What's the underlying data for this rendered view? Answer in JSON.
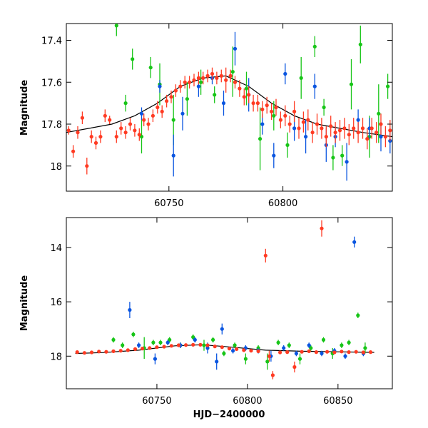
{
  "chart_data": [
    {
      "type": "scatter",
      "xlabel": "",
      "ylabel": "Magnitude",
      "xlim": [
        60705,
        60848
      ],
      "ylim": [
        18.12,
        17.32
      ],
      "y_inverted": true,
      "x_ticks": [
        60750,
        60800
      ],
      "y_ticks": [
        17.4,
        17.6,
        17.8,
        18
      ],
      "y_tick_labels": [
        "17.4",
        "17.6",
        "17.8",
        "18"
      ],
      "grid": false,
      "legend": "none",
      "series": [
        {
          "color": "#ff3a22",
          "x": [
            60706,
            60708,
            60710,
            60712,
            60714,
            60716,
            60718,
            60720,
            60722,
            60724,
            60727,
            60729,
            60731,
            60733,
            60735,
            60737,
            60739,
            60741,
            60743,
            60745,
            60747,
            60749,
            60751,
            60753,
            60755,
            60757,
            60759,
            60761,
            60763,
            60765,
            60767,
            60769,
            60771,
            60773,
            60775,
            60777,
            60779,
            60781,
            60783,
            60785,
            60787,
            60789,
            60791,
            60793,
            60795,
            60797,
            60799,
            60801,
            60803,
            60805,
            60807,
            60809,
            60811,
            60813,
            60815,
            60817,
            60819,
            60821,
            60823,
            60825,
            60827,
            60829,
            60831,
            60833,
            60835,
            60837,
            60839,
            60841,
            60843,
            60845,
            60847
          ],
          "y": [
            17.83,
            17.93,
            17.84,
            17.77,
            18.0,
            17.86,
            17.89,
            17.86,
            17.76,
            17.78,
            17.86,
            17.82,
            17.84,
            17.8,
            17.83,
            17.85,
            17.78,
            17.8,
            17.76,
            17.72,
            17.74,
            17.69,
            17.67,
            17.64,
            17.62,
            17.6,
            17.6,
            17.59,
            17.58,
            17.58,
            17.57,
            17.56,
            17.58,
            17.57,
            17.59,
            17.57,
            17.6,
            17.63,
            17.67,
            17.66,
            17.7,
            17.7,
            17.73,
            17.71,
            17.74,
            17.72,
            17.78,
            17.76,
            17.8,
            17.74,
            17.82,
            17.79,
            17.78,
            17.84,
            17.8,
            17.82,
            17.86,
            17.81,
            17.84,
            17.83,
            17.82,
            17.85,
            17.82,
            17.84,
            17.82,
            17.87,
            17.82,
            17.84,
            17.8,
            17.86,
            17.83
          ],
          "err": [
            0.02,
            0.03,
            0.03,
            0.03,
            0.04,
            0.03,
            0.03,
            0.03,
            0.03,
            0.02,
            0.03,
            0.03,
            0.03,
            0.03,
            0.03,
            0.03,
            0.03,
            0.03,
            0.03,
            0.03,
            0.03,
            0.03,
            0.03,
            0.03,
            0.03,
            0.03,
            0.03,
            0.03,
            0.03,
            0.03,
            0.03,
            0.03,
            0.03,
            0.03,
            0.06,
            0.03,
            0.03,
            0.04,
            0.04,
            0.04,
            0.04,
            0.04,
            0.04,
            0.04,
            0.04,
            0.04,
            0.04,
            0.05,
            0.04,
            0.05,
            0.05,
            0.05,
            0.05,
            0.05,
            0.05,
            0.05,
            0.05,
            0.05,
            0.05,
            0.05,
            0.05,
            0.05,
            0.05,
            0.05,
            0.05,
            0.05,
            0.05,
            0.05,
            0.05,
            0.05,
            0.05
          ]
        },
        {
          "color": "#17c517",
          "x": [
            60727,
            60731,
            60734,
            60738,
            60742,
            60746,
            60752,
            60758,
            60764,
            60770,
            60778,
            60784,
            60790,
            60796,
            60802,
            60808,
            60814,
            60818,
            60822,
            60826,
            60830,
            60834,
            60838,
            60842,
            60846
          ],
          "y": [
            17.33,
            17.7,
            17.49,
            17.86,
            17.53,
            17.61,
            17.78,
            17.68,
            17.6,
            17.66,
            17.55,
            17.63,
            17.87,
            17.76,
            17.9,
            17.58,
            17.43,
            17.72,
            17.96,
            17.95,
            17.61,
            17.42,
            17.86,
            17.75,
            17.62
          ],
          "err": [
            0.05,
            0.04,
            0.05,
            0.08,
            0.05,
            0.1,
            0.12,
            0.08,
            0.06,
            0.04,
            0.12,
            0.08,
            0.15,
            0.07,
            0.06,
            0.1,
            0.05,
            0.04,
            0.06,
            0.05,
            0.12,
            0.09,
            0.1,
            0.14,
            0.06
          ]
        },
        {
          "color": "#0a55e0",
          "x": [
            60738,
            60746,
            60752,
            60756,
            60763,
            60769,
            60774,
            60779,
            60785,
            60791,
            60796,
            60801,
            60805,
            60810,
            60814,
            60819,
            60823,
            60828,
            60833,
            60838,
            60843,
            60847
          ],
          "y": [
            17.75,
            17.62,
            17.95,
            17.75,
            17.62,
            17.58,
            17.7,
            17.44,
            17.66,
            17.8,
            17.95,
            17.56,
            17.82,
            17.86,
            17.62,
            17.9,
            17.86,
            17.98,
            17.78,
            17.82,
            17.86,
            17.88
          ],
          "err": [
            0.03,
            0.03,
            0.1,
            0.08,
            0.05,
            0.03,
            0.06,
            0.08,
            0.08,
            0.05,
            0.06,
            0.05,
            0.06,
            0.08,
            0.06,
            0.08,
            0.05,
            0.09,
            0.05,
            0.05,
            0.07,
            0.06
          ]
        }
      ],
      "model_curve": {
        "color": "#000000",
        "x": [
          60705,
          60715,
          60725,
          60735,
          60745,
          60755,
          60765,
          60775,
          60785,
          60795,
          60805,
          60815,
          60825,
          60835,
          60848
        ],
        "y": [
          17.84,
          17.82,
          17.8,
          17.76,
          17.7,
          17.62,
          17.58,
          17.57,
          17.62,
          17.7,
          17.76,
          17.8,
          17.82,
          17.84,
          17.86
        ]
      }
    },
    {
      "type": "scatter",
      "xlabel": "HJD−2400000",
      "ylabel": "Magnitude",
      "xlim": [
        60700,
        60880
      ],
      "ylim": [
        19.2,
        12.9
      ],
      "y_inverted": true,
      "x_ticks": [
        60750,
        60800,
        60850
      ],
      "y_ticks": [
        14,
        16,
        18
      ],
      "y_tick_labels": [
        "14",
        "16",
        "18"
      ],
      "grid": false,
      "legend": "none",
      "series": [
        {
          "color": "#ff3a22",
          "x": [
            60706,
            60710,
            60714,
            60718,
            60722,
            60726,
            60730,
            60734,
            60738,
            60742,
            60746,
            60750,
            60754,
            60758,
            60762,
            60766,
            60770,
            60774,
            60778,
            60782,
            60786,
            60790,
            60794,
            60798,
            60802,
            60806,
            60810,
            60812,
            60814,
            60818,
            60822,
            60826,
            60830,
            60834,
            60838,
            60841,
            60844,
            60848,
            60852,
            60856,
            60860,
            60864,
            60868
          ],
          "y": [
            17.85,
            17.88,
            17.86,
            17.83,
            17.84,
            17.82,
            17.8,
            17.78,
            17.74,
            17.72,
            17.7,
            17.67,
            17.65,
            17.62,
            17.6,
            17.59,
            17.58,
            17.58,
            17.6,
            17.64,
            17.67,
            17.72,
            17.74,
            17.78,
            17.8,
            17.82,
            14.3,
            18.0,
            18.7,
            17.86,
            17.85,
            18.4,
            17.84,
            17.82,
            17.85,
            13.3,
            17.84,
            17.86,
            17.83,
            17.85,
            17.84,
            17.86,
            17.85
          ],
          "err": [
            0.05,
            0.05,
            0.05,
            0.05,
            0.05,
            0.05,
            0.05,
            0.05,
            0.05,
            0.05,
            0.05,
            0.05,
            0.05,
            0.05,
            0.05,
            0.05,
            0.05,
            0.05,
            0.05,
            0.05,
            0.05,
            0.05,
            0.05,
            0.05,
            0.05,
            0.05,
            0.25,
            0.2,
            0.15,
            0.05,
            0.05,
            0.2,
            0.05,
            0.05,
            0.05,
            0.3,
            0.05,
            0.05,
            0.05,
            0.05,
            0.05,
            0.05,
            0.05
          ]
        },
        {
          "color": "#17c517",
          "x": [
            60726,
            60731,
            60737,
            60743,
            60748,
            60752,
            60757,
            60763,
            60770,
            60776,
            60781,
            60787,
            60793,
            60799,
            60806,
            60811,
            60817,
            60823,
            60829,
            60835,
            60842,
            60847,
            60852,
            60856,
            60861,
            60865
          ],
          "y": [
            17.4,
            17.6,
            17.2,
            17.7,
            17.5,
            17.5,
            17.4,
            17.6,
            17.3,
            17.6,
            17.4,
            17.9,
            17.6,
            18.1,
            17.7,
            18.2,
            17.5,
            17.6,
            18.1,
            17.7,
            17.4,
            17.9,
            17.6,
            17.5,
            16.5,
            17.7
          ],
          "err": [
            0.1,
            0.1,
            0.1,
            0.4,
            0.1,
            0.1,
            0.1,
            0.1,
            0.1,
            0.2,
            0.1,
            0.1,
            0.1,
            0.2,
            0.1,
            0.3,
            0.1,
            0.1,
            0.2,
            0.1,
            0.1,
            0.2,
            0.1,
            0.1,
            0.1,
            0.2
          ]
        },
        {
          "color": "#0a55e0",
          "x": [
            60735,
            60740,
            60749,
            60756,
            60763,
            60771,
            60778,
            60783,
            60786,
            60792,
            60799,
            60806,
            60813,
            60820,
            60827,
            60834,
            60841,
            60848,
            60854,
            60859,
            60864
          ],
          "y": [
            16.3,
            17.6,
            18.1,
            17.5,
            17.6,
            17.4,
            17.7,
            18.2,
            17.0,
            17.8,
            17.7,
            17.8,
            18.0,
            17.7,
            17.9,
            17.6,
            17.9,
            17.8,
            18.0,
            13.8,
            17.9
          ],
          "err": [
            0.3,
            0.1,
            0.2,
            0.1,
            0.1,
            0.1,
            0.2,
            0.3,
            0.2,
            0.1,
            0.1,
            0.1,
            0.2,
            0.1,
            0.1,
            0.1,
            0.1,
            0.1,
            0.1,
            0.2,
            0.1
          ]
        }
      ],
      "model_curve": {
        "color": "#000000",
        "x": [
          60705,
          60720,
          60740,
          60760,
          60775,
          60790,
          60810,
          60830,
          60850,
          60870
        ],
        "y": [
          17.9,
          17.87,
          17.78,
          17.62,
          17.58,
          17.66,
          17.78,
          17.82,
          17.84,
          17.86
        ]
      }
    }
  ]
}
